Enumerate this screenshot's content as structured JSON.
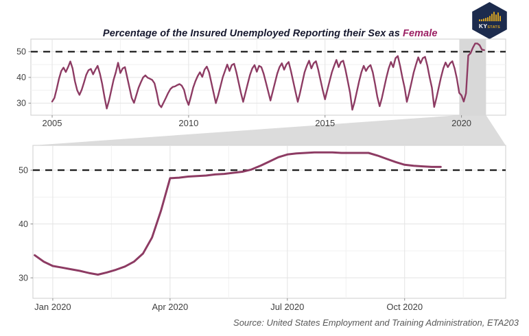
{
  "page": {
    "title_prefix": "Percentage of the Insured Unemployed Reporting their Sex as ",
    "title_highlight": "Female",
    "source_text": "Source: United States Employment and Training Administration, ETA203"
  },
  "logo": {
    "ky": "KY",
    "stats": "STATS"
  },
  "colors": {
    "line": "#8D3B63",
    "title_text": "#16182E",
    "title_highlight": "#9B1F63",
    "dashed_line": "#1A1A1A",
    "grid_major": "#E3E3E3",
    "grid_minor": "#F1F1F1",
    "panel_border": "#D6D6D6",
    "panel_bg": "#FFFFFF",
    "highlight_band": "#D8D8D8",
    "connector": "#DCDCDC",
    "axis_text": "#404040",
    "tick_mark": "#8A8A8A",
    "logo_bg": "#1C2B4D",
    "logo_gold": "#D9A521"
  },
  "chart_data": [
    {
      "type": "line",
      "name": "insured-unemployed-female-share-2005-2020",
      "x_unit": "year (monthly points)",
      "ylabel": "percent",
      "xlim": [
        2004.22,
        2021.62
      ],
      "ylim": [
        25.3,
        54.9
      ],
      "xticks": [
        2005,
        2010,
        2015,
        2020
      ],
      "xtick_labels": [
        "2005",
        "2010",
        "2015",
        "2020"
      ],
      "xminor": [
        2007.5,
        2012.5,
        2017.5
      ],
      "yticks": [
        30,
        40,
        50
      ],
      "ytick_labels": [
        "30",
        "40",
        "50"
      ],
      "yminor": [
        35,
        45
      ],
      "reference_line_y": 50,
      "highlight_span_x": [
        2019.92,
        2020.9
      ],
      "grid": true,
      "legend": false,
      "series": [
        {
          "name": "percent_female",
          "x_start": 2005.0,
          "x_step": 0.083333,
          "values": [
            30.6,
            32.0,
            35.5,
            39.5,
            42.5,
            43.8,
            42.1,
            44.0,
            46.2,
            43.5,
            38.5,
            35.0,
            33.2,
            35.2,
            38.0,
            41.0,
            42.8,
            43.3,
            41.2,
            43.0,
            44.5,
            41.5,
            37.5,
            32.5,
            27.9,
            31.0,
            35.0,
            39.0,
            42.0,
            45.7,
            41.7,
            43.5,
            44.0,
            40.0,
            36.0,
            32.0,
            30.1,
            33.0,
            36.0,
            38.1,
            40.0,
            40.8,
            39.9,
            39.5,
            39.0,
            37.7,
            34.0,
            29.5,
            28.4,
            30.2,
            32.0,
            33.9,
            35.5,
            36.3,
            36.5,
            37.0,
            37.4,
            36.8,
            35.2,
            31.5,
            29.3,
            32.5,
            36.0,
            38.5,
            40.5,
            42.0,
            40.2,
            43.0,
            44.2,
            42.0,
            38.0,
            34.0,
            30.0,
            33.0,
            36.5,
            40.0,
            42.5,
            45.0,
            42.5,
            44.8,
            45.3,
            42.0,
            38.0,
            34.0,
            30.5,
            34.0,
            37.5,
            41.0,
            43.5,
            44.8,
            42.2,
            44.5,
            44.0,
            41.5,
            38.0,
            34.5,
            31.0,
            34.5,
            38.0,
            41.5,
            44.0,
            45.5,
            43.0,
            45.0,
            46.0,
            42.5,
            38.5,
            34.5,
            30.5,
            34.0,
            38.0,
            42.0,
            44.5,
            46.5,
            43.5,
            45.5,
            46.3,
            43.0,
            39.0,
            35.0,
            31.5,
            35.0,
            38.5,
            42.0,
            44.5,
            46.8,
            44.0,
            46.0,
            46.5,
            43.0,
            38.5,
            34.0,
            27.4,
            30.5,
            34.5,
            38.5,
            42.0,
            44.5,
            42.5,
            44.0,
            44.8,
            42.0,
            37.5,
            32.5,
            28.8,
            32.0,
            36.0,
            40.0,
            43.5,
            46.0,
            44.0,
            47.5,
            48.3,
            44.5,
            40.0,
            36.0,
            30.5,
            34.0,
            38.0,
            42.0,
            45.0,
            47.8,
            45.5,
            47.5,
            48.0,
            44.5,
            40.0,
            36.0,
            28.5,
            32.0,
            36.0,
            40.0,
            43.5,
            45.8,
            44.0,
            45.5,
            46.3,
            43.5,
            39.5,
            34.0,
            33.0,
            30.6,
            33.8,
            48.5,
            49.4,
            51.5,
            53.2,
            53.2,
            52.5,
            50.8,
            50.6
          ]
        }
      ]
    },
    {
      "type": "line",
      "name": "insured-unemployed-female-share-2020-weekly",
      "x_unit": "week of 2020 (0 = Jan 4)",
      "ylabel": "percent",
      "xlim": [
        -2.2,
        50.2
      ],
      "ylim": [
        26.2,
        54.6
      ],
      "xticks": [
        0,
        13,
        26,
        39
      ],
      "xtick_labels": [
        "Jan 2020",
        "Apr 2020",
        "Jul 2020",
        "Oct 2020"
      ],
      "xminor": [
        6.5,
        19.5,
        32.5,
        45.5
      ],
      "yticks": [
        30,
        40,
        50
      ],
      "ytick_labels": [
        "30",
        "40",
        "50"
      ],
      "yminor": [
        35,
        45
      ],
      "reference_line_y": 50,
      "highlight_span_x": null,
      "grid": true,
      "legend": false,
      "series": [
        {
          "name": "percent_female",
          "x_start": -2,
          "x_step": 1,
          "values": [
            34.2,
            33.0,
            32.2,
            31.9,
            31.6,
            31.3,
            30.9,
            30.6,
            31.0,
            31.5,
            32.1,
            33.0,
            34.5,
            37.5,
            42.5,
            48.5,
            48.6,
            48.8,
            48.9,
            49.0,
            49.2,
            49.3,
            49.5,
            49.7,
            50.1,
            50.8,
            51.6,
            52.4,
            52.9,
            53.1,
            53.2,
            53.3,
            53.3,
            53.3,
            53.2,
            53.2,
            53.2,
            53.2,
            52.7,
            52.1,
            51.5,
            51.0,
            50.8,
            50.7,
            50.6,
            50.6
          ]
        }
      ]
    }
  ]
}
